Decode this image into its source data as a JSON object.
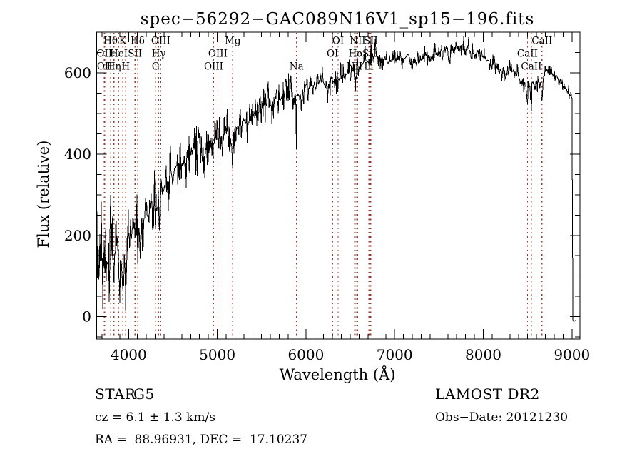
{
  "title": "spec−56292−GAC089N16V1_sp15−196.fits",
  "colors": {
    "background": "#ffffff",
    "spectrum": "#000000",
    "marker_line": "#9e3a28",
    "text": "#000000"
  },
  "annotations": {
    "object_type": "STAR",
    "subclass": "G5",
    "survey": "LAMOST DR2",
    "cz": "cz = 6.1 ± 1.3 km/s",
    "obs_date": "Obs−Date: 20121230",
    "ra_dec": "RA =  88.96931, DEC =  17.10237"
  },
  "chart_data": {
    "type": "line",
    "title": "spec−56292−GAC089N16V1_sp15−196.fits",
    "xlabel": "Wavelength (Å)",
    "ylabel": "Flux (relative)",
    "xlim": [
      3640,
      9090
    ],
    "ylim": [
      -55,
      700
    ],
    "x_major_ticks": [
      4000,
      5000,
      6000,
      7000,
      8000,
      9000
    ],
    "y_major_ticks": [
      0,
      200,
      400,
      600
    ],
    "x_minor_step": 100,
    "y_minor_step": 50,
    "grid": false,
    "legend": "none",
    "line_markers": [
      {
        "label": "OII",
        "wavelength": 3727,
        "row": 2
      },
      {
        "label": "OII",
        "wavelength": 3730,
        "row": 3
      },
      {
        "label": "Hθ",
        "wavelength": 3798,
        "row": 1
      },
      {
        "label": "Hη",
        "wavelength": 3835,
        "row": 3
      },
      {
        "label": "HeI",
        "wavelength": 3889,
        "row": 2
      },
      {
        "label": "K",
        "wavelength": 3933,
        "row": 1
      },
      {
        "label": "H",
        "wavelength": 3968,
        "row": 3
      },
      {
        "label": "SII",
        "wavelength": 4072,
        "row": 2
      },
      {
        "label": "Hδ",
        "wavelength": 4102,
        "row": 1
      },
      {
        "label": "G",
        "wavelength": 4305,
        "row": 3
      },
      {
        "label": "Hγ",
        "wavelength": 4340,
        "row": 2
      },
      {
        "label": "OIII",
        "wavelength": 4363,
        "row": 1
      },
      {
        "label": "OIII",
        "wavelength": 4959,
        "row": 3
      },
      {
        "label": "OIII",
        "wavelength": 5007,
        "row": 2
      },
      {
        "label": "Mg",
        "wavelength": 5175,
        "row": 1
      },
      {
        "label": "Na",
        "wavelength": 5894,
        "row": 3
      },
      {
        "label": "OI",
        "wavelength": 6300,
        "row": 2
      },
      {
        "label": "OI",
        "wavelength": 6363,
        "row": 1
      },
      {
        "label": "NII",
        "wavelength": 6548,
        "row": 3
      },
      {
        "label": "Hα",
        "wavelength": 6563,
        "row": 2
      },
      {
        "label": "NII",
        "wavelength": 6583,
        "row": 1
      },
      {
        "label": "Li",
        "wavelength": 6708,
        "row": 3
      },
      {
        "label": "SII",
        "wavelength": 6716,
        "row": 2
      },
      {
        "label": "SII",
        "wavelength": 6731,
        "row": 1
      },
      {
        "label": "CaII",
        "wavelength": 8498,
        "row": 2
      },
      {
        "label": "CaII",
        "wavelength": 8542,
        "row": 3
      },
      {
        "label": "CaII",
        "wavelength": 8662,
        "row": 1
      }
    ],
    "spectrum": {
      "lambda_start": 3643,
      "lambda_end": 9043,
      "lambda_step": 5.5,
      "seed": 1337,
      "continuum_anchors": [
        [
          3643,
          110
        ],
        [
          3665,
          85
        ],
        [
          3690,
          125
        ],
        [
          3715,
          130
        ],
        [
          3740,
          120
        ],
        [
          3770,
          135
        ],
        [
          3800,
          155
        ],
        [
          3830,
          135
        ],
        [
          3860,
          165
        ],
        [
          3890,
          170
        ],
        [
          3915,
          150
        ],
        [
          3938,
          120
        ],
        [
          3958,
          145
        ],
        [
          3972,
          140
        ],
        [
          4000,
          185
        ],
        [
          4050,
          205
        ],
        [
          4105,
          220
        ],
        [
          4160,
          245
        ],
        [
          4220,
          260
        ],
        [
          4270,
          278
        ],
        [
          4310,
          280
        ],
        [
          4345,
          300
        ],
        [
          4400,
          325
        ],
        [
          4470,
          350
        ],
        [
          4550,
          375
        ],
        [
          4650,
          398
        ],
        [
          4750,
          413
        ],
        [
          4820,
          408
        ],
        [
          4870,
          412
        ],
        [
          4930,
          432
        ],
        [
          5000,
          450
        ],
        [
          5080,
          460
        ],
        [
          5180,
          448
        ],
        [
          5250,
          470
        ],
        [
          5330,
          487
        ],
        [
          5400,
          495
        ],
        [
          5500,
          513
        ],
        [
          5600,
          527
        ],
        [
          5700,
          538
        ],
        [
          5810,
          546
        ],
        [
          5900,
          552
        ],
        [
          6000,
          561
        ],
        [
          6100,
          569
        ],
        [
          6200,
          575
        ],
        [
          6300,
          581
        ],
        [
          6400,
          589
        ],
        [
          6500,
          599
        ],
        [
          6600,
          611
        ],
        [
          6700,
          632
        ],
        [
          6760,
          650
        ],
        [
          6830,
          645
        ],
        [
          6900,
          634
        ],
        [
          6960,
          630
        ],
        [
          7020,
          629
        ],
        [
          7090,
          637
        ],
        [
          7160,
          640
        ],
        [
          7240,
          629
        ],
        [
          7310,
          635
        ],
        [
          7400,
          644
        ],
        [
          7490,
          652
        ],
        [
          7570,
          659
        ],
        [
          7650,
          657
        ],
        [
          7720,
          666
        ],
        [
          7780,
          668
        ],
        [
          7840,
          658
        ],
        [
          7910,
          650
        ],
        [
          7980,
          640
        ],
        [
          8060,
          628
        ],
        [
          8140,
          615
        ],
        [
          8220,
          607
        ],
        [
          8300,
          604
        ],
        [
          8380,
          598
        ],
        [
          8450,
          578
        ],
        [
          8520,
          568
        ],
        [
          8590,
          586
        ],
        [
          8650,
          580
        ],
        [
          8710,
          596
        ],
        [
          8770,
          599
        ],
        [
          8830,
          589
        ],
        [
          8890,
          573
        ],
        [
          8940,
          558
        ],
        [
          8980,
          546
        ],
        [
          9000,
          538
        ],
        [
          9004,
          420
        ],
        [
          9007,
          40
        ],
        [
          9009,
          -12
        ],
        [
          9043,
          -10
        ]
      ],
      "noise_segments": [
        [
          3643,
          3700,
          115
        ],
        [
          3700,
          3800,
          85
        ],
        [
          3800,
          3950,
          68
        ],
        [
          3950,
          4150,
          58
        ],
        [
          4150,
          4500,
          48
        ],
        [
          4500,
          4900,
          40
        ],
        [
          4900,
          5400,
          36
        ],
        [
          5400,
          5900,
          28
        ],
        [
          5900,
          6400,
          25
        ],
        [
          6400,
          6900,
          22
        ],
        [
          6900,
          7500,
          17
        ],
        [
          7500,
          8000,
          14
        ],
        [
          8000,
          8400,
          15
        ],
        [
          8400,
          8750,
          19
        ],
        [
          8750,
          8995,
          12
        ],
        [
          8995,
          9045,
          2
        ]
      ],
      "absorption_features": [
        [
          3934,
          40,
          9
        ],
        [
          3969,
          35,
          9
        ],
        [
          4102,
          30,
          8
        ],
        [
          4305,
          28,
          11
        ],
        [
          4341,
          28,
          8
        ],
        [
          4861,
          33,
          9
        ],
        [
          5175,
          42,
          13
        ],
        [
          5577,
          -48,
          3
        ],
        [
          5892,
          140,
          4
        ],
        [
          6563,
          38,
          8
        ],
        [
          6868,
          30,
          16
        ],
        [
          7185,
          24,
          18
        ],
        [
          7615,
          36,
          14
        ],
        [
          8498,
          48,
          8
        ],
        [
          8542,
          52,
          8
        ],
        [
          8662,
          52,
          8
        ]
      ]
    }
  }
}
